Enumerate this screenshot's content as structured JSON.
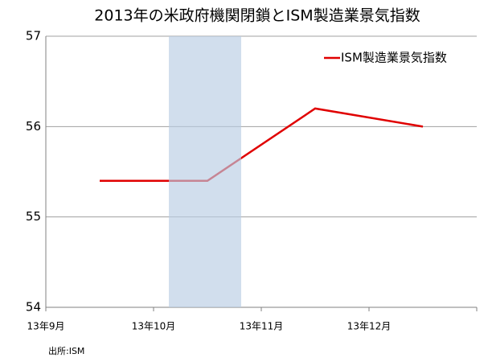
{
  "chart_data": {
    "type": "line",
    "title": "2013年の米政府機関閉鎖とISM製造業景気指数",
    "categories": [
      "13年9月",
      "13年10月",
      "13年11月",
      "13年12月"
    ],
    "series": [
      {
        "name": "ISM製造業景気指数",
        "color": "#e00000",
        "values": [
          55.4,
          55.4,
          56.2,
          56.0
        ]
      }
    ],
    "ylim": [
      54,
      57
    ],
    "yticks": [
      54,
      55,
      56,
      57
    ],
    "grid": true,
    "legend": "upper right",
    "source": "出所:ISM"
  }
}
